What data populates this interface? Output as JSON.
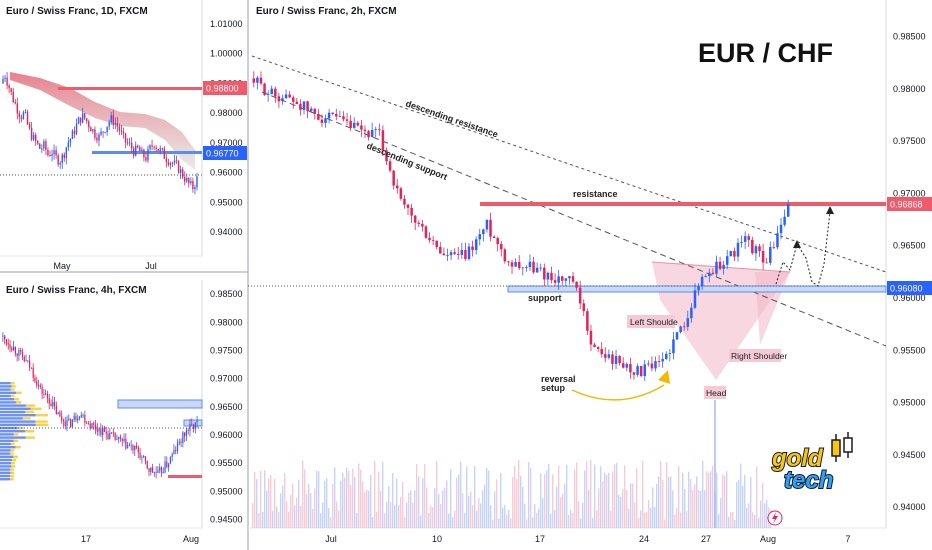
{
  "panes": {
    "daily": {
      "title": "Euro / Swiss Franc, 1D, FXCM",
      "x_ticks": [
        "May",
        "Jul"
      ]
    },
    "h4": {
      "title": "Euro / Swiss Franc, 4h, FXCM",
      "x_ticks": [
        "17",
        "Aug"
      ]
    },
    "h2": {
      "title": "Euro / Swiss Franc, 2h, FXCM",
      "x_ticks": [
        "Jul",
        "10",
        "17",
        "24",
        "27",
        "Aug",
        "7"
      ]
    }
  },
  "brand": {
    "text": "EUR / CHF",
    "logo_line1": "gold",
    "logo_line2": "tech"
  },
  "colors": {
    "bull": "#2962ff",
    "bear": "#e0245e",
    "resistance": "#ef5b6b",
    "support": "#5b8def",
    "pattern_fill": "#f3b6c7",
    "arrow": "#f5b700"
  },
  "chart_data": [
    {
      "type": "line",
      "title": "Euro / Swiss Franc, 1D, FXCM",
      "x_ticks": [
        "May",
        "Jul"
      ],
      "y_ticks": [
        1.01,
        1.0,
        0.99,
        0.98,
        0.97,
        0.96,
        0.95,
        0.94
      ],
      "ylim": [
        0.932,
        1.016
      ],
      "x": [
        0,
        2,
        4,
        6,
        8,
        10,
        12,
        14,
        16,
        18,
        20,
        22,
        24,
        26,
        28,
        30,
        32,
        34,
        36,
        38,
        40,
        42,
        44,
        46,
        48,
        50,
        52,
        54,
        56,
        58,
        60,
        62,
        64,
        66,
        68,
        70,
        72,
        74,
        76,
        78,
        80,
        82,
        84,
        86,
        88,
        90,
        92,
        94,
        96,
        98,
        100
      ],
      "values": [
        0.99,
        0.993,
        0.989,
        0.985,
        0.982,
        0.979,
        0.98,
        0.975,
        0.972,
        0.97,
        0.968,
        0.969,
        0.966,
        0.967,
        0.965,
        0.964,
        0.966,
        0.97,
        0.972,
        0.975,
        0.978,
        0.979,
        0.977,
        0.975,
        0.973,
        0.972,
        0.974,
        0.976,
        0.978,
        0.977,
        0.975,
        0.972,
        0.97,
        0.969,
        0.967,
        0.968,
        0.966,
        0.965,
        0.968,
        0.97,
        0.968,
        0.967,
        0.965,
        0.964,
        0.963,
        0.962,
        0.96,
        0.958,
        0.956,
        0.955,
        0.958
      ],
      "markers": [
        {
          "label": "0.98800",
          "value": 0.988,
          "kind": "resistance"
        },
        {
          "label": "0.96770",
          "value": 0.9677,
          "kind": "support"
        }
      ]
    },
    {
      "type": "line",
      "title": "Euro / Swiss Franc, 4h, FXCM",
      "x_ticks": [
        "17",
        "Aug"
      ],
      "y_ticks": [
        0.985,
        0.98,
        0.975,
        0.97,
        0.965,
        0.96,
        0.955,
        0.95,
        0.945
      ],
      "ylim": [
        0.9435,
        0.9875
      ],
      "x": [
        0,
        5,
        10,
        15,
        20,
        25,
        30,
        35,
        40,
        45,
        50,
        55,
        60,
        65,
        70,
        75,
        80,
        85,
        90,
        95,
        100
      ],
      "values": [
        0.9775,
        0.976,
        0.974,
        0.972,
        0.968,
        0.966,
        0.963,
        0.962,
        0.964,
        0.962,
        0.961,
        0.96,
        0.959,
        0.958,
        0.957,
        0.954,
        0.953,
        0.955,
        0.958,
        0.961,
        0.962
      ],
      "markers": [
        {
          "value": 0.9655,
          "kind": "support"
        },
        {
          "value": 0.9622,
          "kind": "support"
        },
        {
          "value": 0.9537,
          "kind": "resistance"
        }
      ]
    },
    {
      "type": "line",
      "title": "Euro / Swiss Franc, 2h, FXCM",
      "x_ticks": [
        "Jul",
        "10",
        "17",
        "24",
        "27",
        "Aug",
        "7"
      ],
      "y_ticks": [
        0.985,
        0.98,
        0.975,
        0.97,
        0.965,
        0.96,
        0.955,
        0.95,
        0.945,
        0.94
      ],
      "ylim": [
        0.938,
        0.9885
      ],
      "x": [
        0,
        4,
        8,
        12,
        16,
        20,
        24,
        28,
        32,
        36,
        40,
        44,
        48,
        52,
        56,
        60,
        64,
        68,
        72,
        76,
        80,
        84,
        88,
        92,
        96,
        100
      ],
      "values": [
        0.981,
        0.9795,
        0.979,
        0.9775,
        0.977,
        0.976,
        0.9755,
        0.969,
        0.9665,
        0.964,
        0.964,
        0.967,
        0.9635,
        0.963,
        0.962,
        0.9615,
        0.955,
        0.954,
        0.953,
        0.9535,
        0.957,
        0.962,
        0.9635,
        0.9655,
        0.9635,
        0.9686
      ],
      "markers": [
        {
          "label": "0.96868",
          "value": 0.96868,
          "kind": "resistance"
        },
        {
          "label": "0.96080",
          "value": 0.9608,
          "kind": "support"
        }
      ],
      "annotations": [
        "descending resistance",
        "descending support",
        "resistance",
        "support",
        "Left Shoulder",
        "Head",
        "Right Shoulder",
        "reversal setup"
      ]
    }
  ],
  "annotations": {
    "descending_resistance": "descending resistance",
    "descending_support": "descending support",
    "resistance": "resistance",
    "support": "support",
    "left_shoulder": "Left Shoulde",
    "head": "Head",
    "right_shoulder": "Right Shoulder",
    "reversal_setup_1": "reversal",
    "reversal_setup_2": "setup"
  },
  "price_tags": {
    "daily_res": "0.98800",
    "daily_sup": "0.96770",
    "h2_res": "0.96868",
    "h2_sup": "0.96080"
  }
}
